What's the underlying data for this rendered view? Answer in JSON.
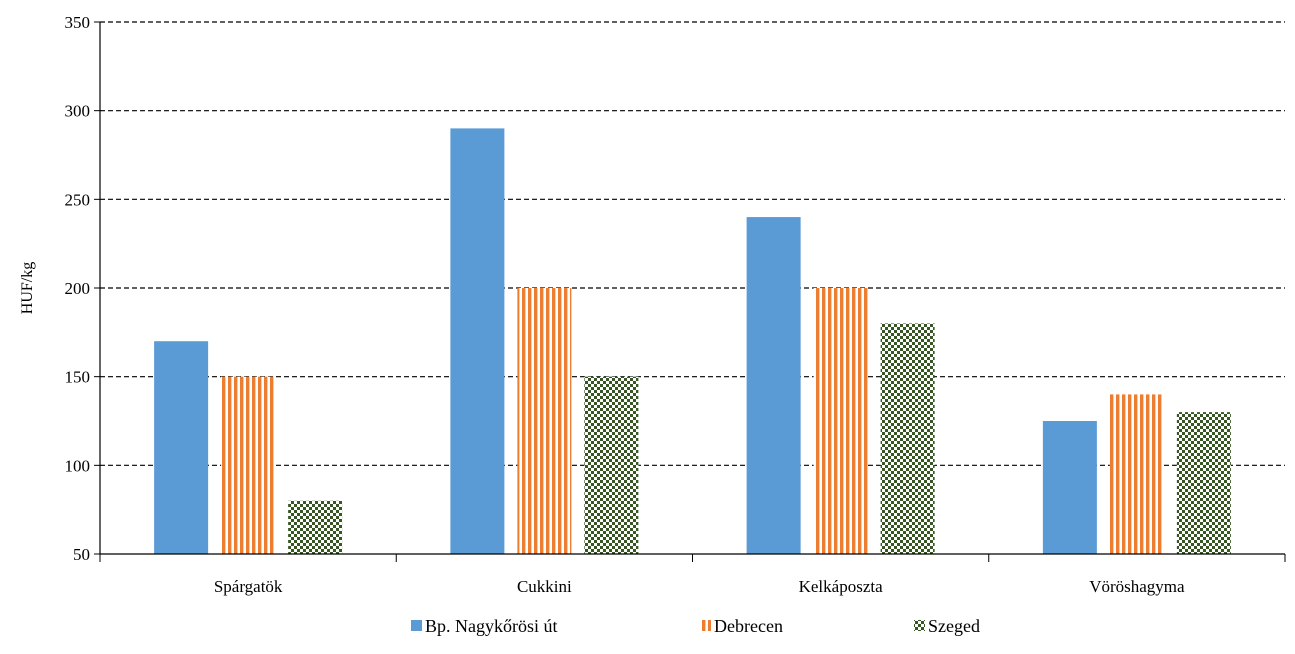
{
  "chart_data": {
    "type": "bar",
    "ylabel": "HUF/kg",
    "ylim": [
      50,
      350
    ],
    "yticks": [
      50,
      100,
      150,
      200,
      250,
      300,
      350
    ],
    "grid": true,
    "legend_position": "bottom",
    "categories": [
      "Spárgatök",
      "Cukkini",
      "Kelkáposzta",
      "Vöröshagyma"
    ],
    "series": [
      {
        "name": "Bp. Nagykőrösi út",
        "values": [
          170,
          290,
          240,
          125
        ],
        "color": "#5b9bd5",
        "pattern": "solid"
      },
      {
        "name": "Debrecen",
        "values": [
          150,
          200,
          200,
          140
        ],
        "color": "#ed7d31",
        "pattern": "vertical-stripes"
      },
      {
        "name": "Szeged",
        "values": [
          80,
          150,
          180,
          130
        ],
        "color": "#375623",
        "pattern": "checker"
      }
    ]
  }
}
